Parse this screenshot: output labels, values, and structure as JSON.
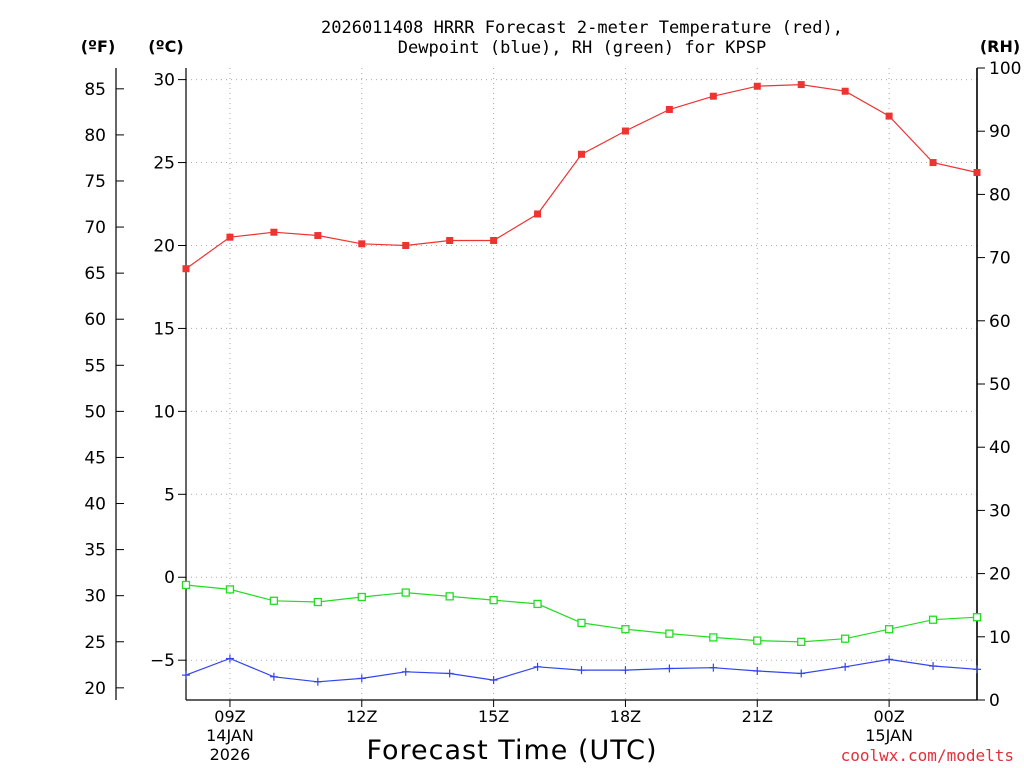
{
  "chart_data": {
    "type": "line",
    "title": "2026011408 HRRR Forecast 2-meter Temperature (red),",
    "subtitle": "Dewpoint (blue), RH (green) for KPSP",
    "xlabel": "Forecast Time (UTC)",
    "credit": "coolwx.com/modelts",
    "units": {
      "fahrenheit": "(ºF)",
      "celsius": "(ºC)",
      "rh": "(RH)"
    },
    "x_hours": [
      8,
      9,
      10,
      11,
      12,
      13,
      14,
      15,
      16,
      17,
      18,
      19,
      20,
      21,
      22,
      23,
      24,
      25,
      26
    ],
    "x_ticks": [
      {
        "hour": 9,
        "label": "09Z",
        "line2": "14JAN",
        "line3": "2026"
      },
      {
        "hour": 12,
        "label": "12Z",
        "line2": "",
        "line3": ""
      },
      {
        "hour": 15,
        "label": "15Z",
        "line2": "",
        "line3": ""
      },
      {
        "hour": 18,
        "label": "18Z",
        "line2": "",
        "line3": ""
      },
      {
        "hour": 21,
        "label": "21Z",
        "line2": "",
        "line3": ""
      },
      {
        "hour": 24,
        "label": "00Z",
        "line2": "15JAN",
        "line3": ""
      }
    ],
    "celsius_ticks": [
      30,
      25,
      20,
      15,
      10,
      5,
      0,
      -5
    ],
    "celsius_tick_labels": [
      "30",
      "25",
      "20",
      "15",
      "10",
      "5",
      "0",
      "−5"
    ],
    "fahrenheit_ticks": [
      85,
      80,
      75,
      70,
      65,
      60,
      55,
      50,
      45,
      40,
      35,
      30,
      25,
      20
    ],
    "rh_ticks": [
      100,
      90,
      80,
      70,
      60,
      50,
      40,
      30,
      20,
      10,
      0
    ],
    "celsius_range": [
      -7.4,
      30.7
    ],
    "rh_range": [
      0,
      100
    ],
    "series": [
      {
        "name": "Temperature",
        "color": "#ee3333",
        "marker": "filled-square",
        "axis": "celsius",
        "values": [
          18.6,
          20.5,
          20.8,
          20.6,
          20.1,
          20.0,
          20.3,
          20.3,
          21.9,
          25.5,
          26.9,
          28.2,
          29.0,
          29.6,
          29.7,
          29.3,
          27.8,
          25.0,
          24.4
        ]
      },
      {
        "name": "Dewpoint",
        "color": "#3344ee",
        "marker": "plus",
        "axis": "celsius",
        "values": [
          -5.9,
          -4.9,
          -6.0,
          -6.3,
          -6.1,
          -5.7,
          -5.8,
          -6.2,
          -5.4,
          -5.6,
          -5.6,
          -5.5,
          -5.45,
          -5.65,
          -5.8,
          -5.4,
          -4.95,
          -5.35,
          -5.55
        ]
      },
      {
        "name": "RH",
        "color": "#22dd22",
        "marker": "open-square",
        "axis": "rh",
        "values": [
          18.2,
          17.5,
          15.7,
          15.5,
          16.3,
          17.0,
          16.4,
          15.8,
          15.2,
          12.2,
          11.2,
          10.5,
          9.9,
          9.4,
          9.2,
          9.7,
          11.2,
          12.7,
          13.1
        ]
      }
    ]
  }
}
